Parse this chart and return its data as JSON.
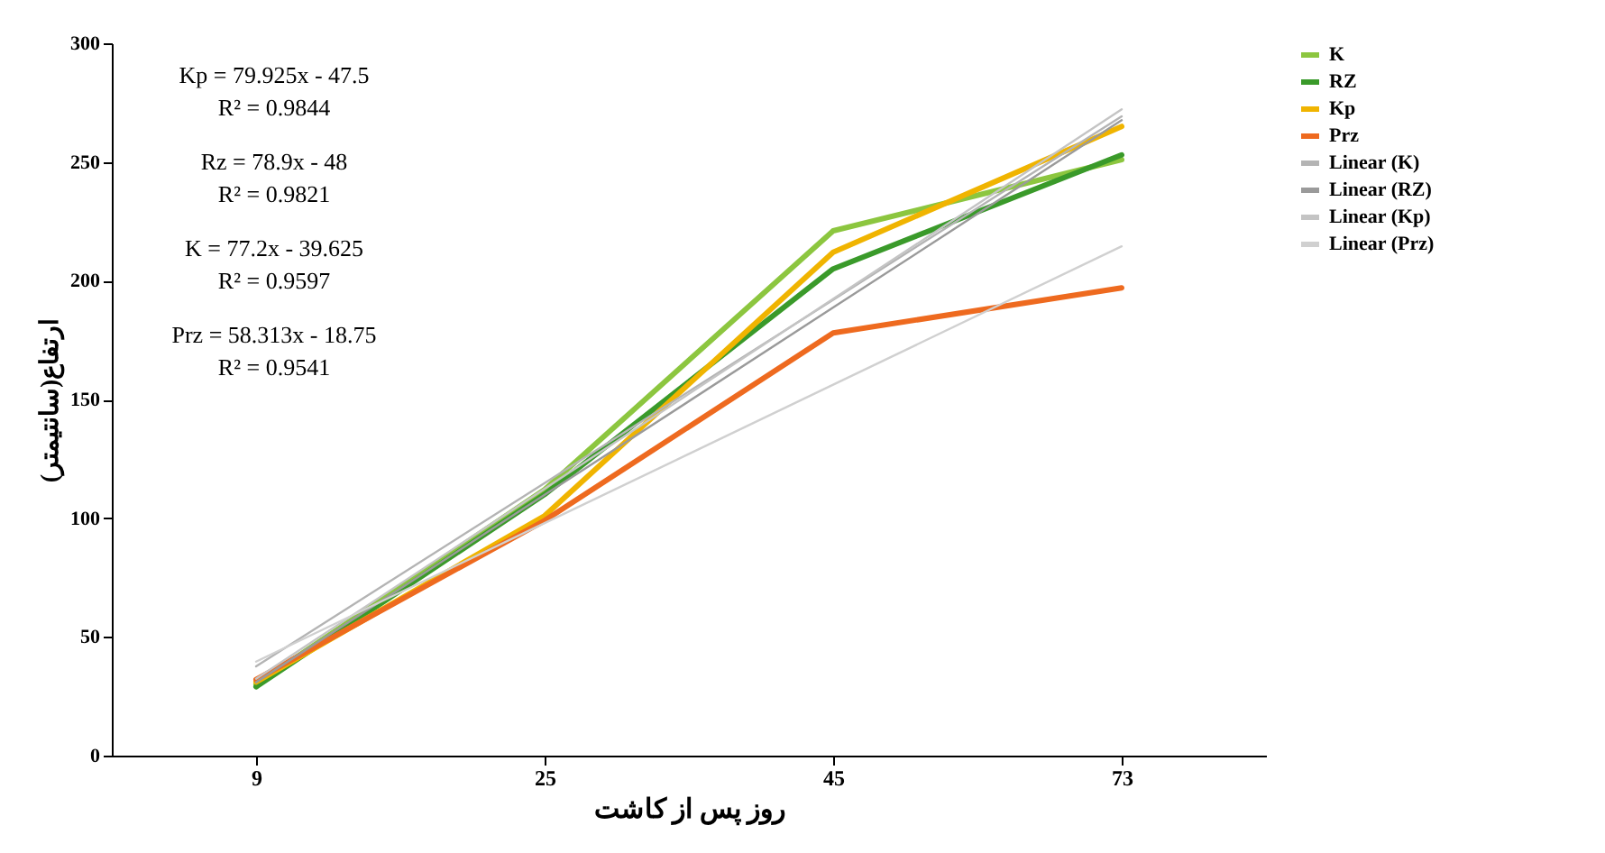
{
  "chart_data": {
    "type": "line",
    "xlabel": "روز پس از کاشت",
    "ylabel": "ارتفاع(سانتیمتر)",
    "categories": [
      "9",
      "25",
      "45",
      "73"
    ],
    "ylim": [
      0,
      300
    ],
    "yticks": [
      0,
      50,
      100,
      150,
      200,
      250,
      300
    ],
    "grid": false,
    "legend": "right",
    "series": [
      {
        "name": "K",
        "color": "#8cc63f",
        "values": [
          30,
          112,
          221,
          251
        ]
      },
      {
        "name": "RZ",
        "color": "#3a9a2a",
        "values": [
          29,
          110,
          205,
          253
        ]
      },
      {
        "name": "Kp",
        "color": "#f0b400",
        "values": [
          31,
          101,
          212,
          265
        ]
      },
      {
        "name": "Prz",
        "color": "#ee6a1f",
        "values": [
          32,
          99,
          178,
          197
        ]
      },
      {
        "name": "Linear (K)",
        "type": "line",
        "color": "#b4b4b4",
        "values": [
          37.6,
          114.8,
          192,
          269.2
        ]
      },
      {
        "name": "Linear (RZ)",
        "type": "line",
        "color": "#9a9a9a",
        "values": [
          30.9,
          109.8,
          188.7,
          267.6
        ]
      },
      {
        "name": "Linear (Kp)",
        "type": "line",
        "color": "#c4c4c4",
        "values": [
          32.4,
          112.4,
          192.3,
          272.2
        ]
      },
      {
        "name": "Linear (Prz)",
        "type": "line",
        "color": "#d0d0d0",
        "values": [
          39.6,
          97.9,
          156.2,
          214.5
        ]
      }
    ],
    "annotations": [
      "Kp = 79.925x - 47.5",
      "R² = 0.9844",
      "Rz = 78.9x - 48",
      "R² = 0.9821",
      "K = 77.2x - 39.625",
      "R² = 0.9597",
      "Prz = 58.313x - 18.75",
      "R² = 0.9541"
    ]
  }
}
